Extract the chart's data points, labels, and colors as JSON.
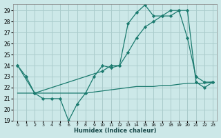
{
  "xlabel": "Humidex (Indice chaleur)",
  "xlim": [
    -0.5,
    23.5
  ],
  "ylim": [
    19,
    29.6
  ],
  "yticks": [
    19,
    20,
    21,
    22,
    23,
    24,
    25,
    26,
    27,
    28,
    29
  ],
  "xticks": [
    0,
    1,
    2,
    3,
    4,
    5,
    6,
    7,
    8,
    9,
    10,
    11,
    12,
    13,
    14,
    15,
    16,
    17,
    18,
    19,
    20,
    21,
    22,
    23
  ],
  "background_color": "#cce8e8",
  "grid_color": "#aacccc",
  "line_color": "#1a7a6e",
  "series": [
    {
      "x": [
        0,
        1,
        2,
        3,
        4,
        5,
        6,
        7,
        8,
        9,
        10,
        11,
        12,
        13,
        14,
        15,
        16,
        17,
        18,
        19,
        20,
        21,
        22,
        23
      ],
      "y": [
        24.0,
        23.0,
        21.5,
        21.0,
        21.0,
        21.0,
        19.0,
        20.5,
        21.5,
        23.0,
        24.0,
        23.8,
        24.0,
        27.8,
        28.8,
        29.5,
        28.5,
        28.5,
        28.5,
        29.0,
        26.5,
        23.0,
        22.5,
        22.5
      ],
      "has_markers": true
    },
    {
      "x": [
        0,
        2,
        10,
        11,
        12,
        13,
        14,
        15,
        16,
        17,
        18,
        19,
        20,
        21,
        22,
        23
      ],
      "y": [
        24.0,
        21.5,
        23.5,
        24.0,
        24.0,
        25.2,
        26.5,
        27.5,
        28.0,
        28.5,
        29.0,
        29.0,
        29.0,
        22.5,
        22.0,
        22.5
      ],
      "has_markers": true
    },
    {
      "x": [
        0,
        1,
        2,
        3,
        4,
        5,
        6,
        7,
        8,
        9,
        10,
        11,
        12,
        13,
        14,
        15,
        16,
        17,
        18,
        19,
        20,
        21,
        22,
        23
      ],
      "y": [
        21.5,
        21.5,
        21.5,
        21.5,
        21.5,
        21.5,
        21.5,
        21.5,
        21.5,
        21.6,
        21.7,
        21.8,
        21.9,
        22.0,
        22.1,
        22.1,
        22.1,
        22.2,
        22.2,
        22.3,
        22.4,
        22.4,
        22.4,
        22.5
      ],
      "has_markers": false
    }
  ]
}
